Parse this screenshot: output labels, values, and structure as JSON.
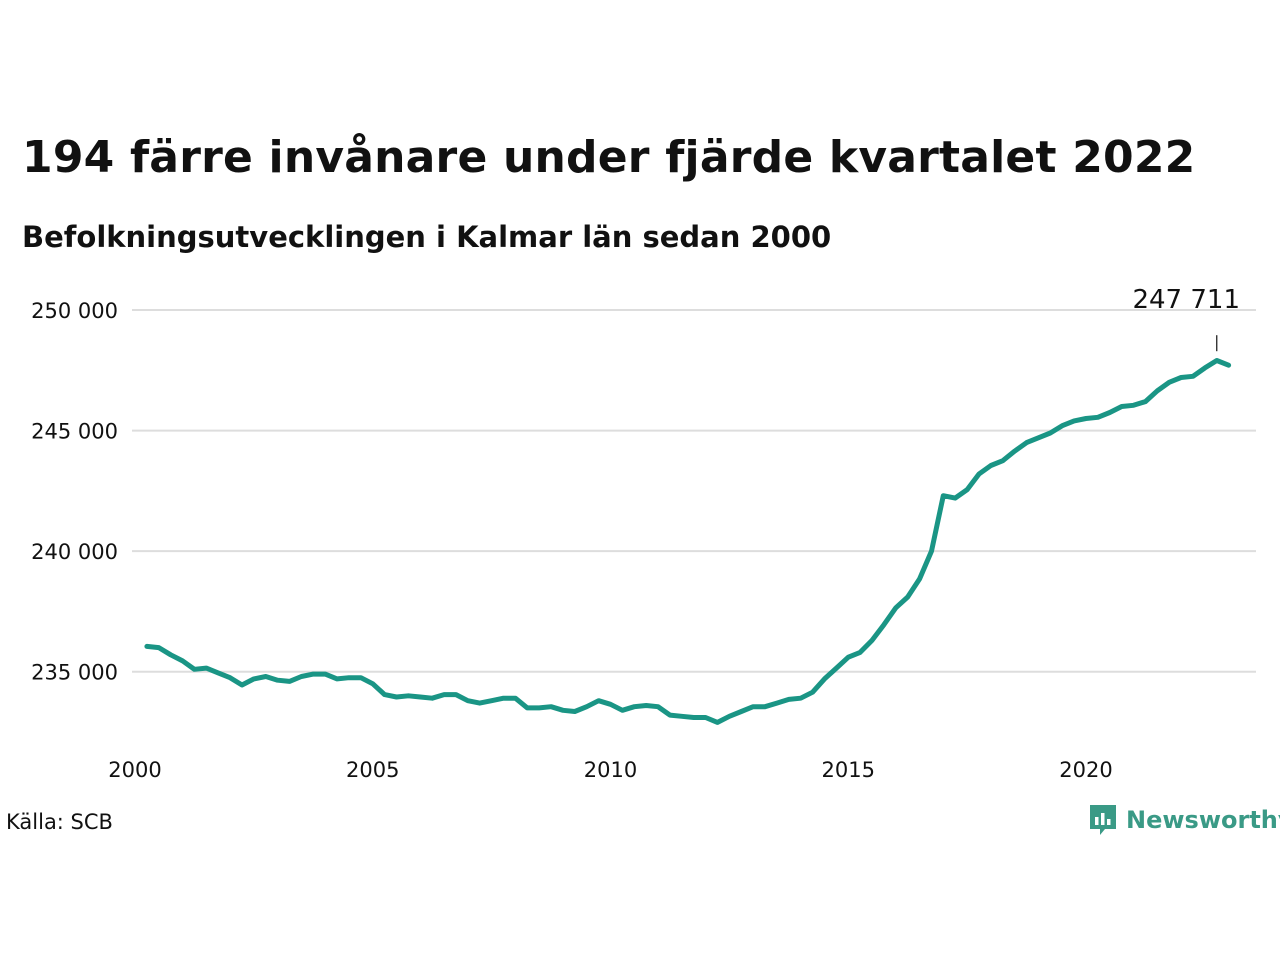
{
  "title": "194 färre invånare under fjärde kvartalet 2022",
  "subtitle": "Befolkningsutvecklingen i Kalmar län sedan 2000",
  "source": "Källa: SCB",
  "brand": {
    "name": "Newsworthy",
    "icon": "newsworthy-logo-icon",
    "color": "#3a9a86"
  },
  "colors": {
    "line": "#1a9585",
    "grid": "#dddddd",
    "text": "#111111"
  },
  "chart_data": {
    "type": "line",
    "title": "194 färre invånare under fjärde kvartalet 2022",
    "subtitle": "Befolkningsutvecklingen i Kalmar län sedan 2000",
    "xlabel": "",
    "ylabel": "",
    "xlim": [
      2000,
      2023.25
    ],
    "ylim": [
      232500,
      250000
    ],
    "x_ticks": [
      2000,
      2005,
      2010,
      2015,
      2020
    ],
    "x_tick_labels": [
      "2000",
      "2005",
      "2010",
      "2015",
      "2020"
    ],
    "y_ticks": [
      235000,
      240000,
      245000,
      250000
    ],
    "y_tick_labels": [
      "235 000",
      "240 000",
      "245 000",
      "250 000"
    ],
    "grid": "horizontal",
    "annotation": {
      "label": "247 711",
      "x": 2022.75,
      "value": 247711
    },
    "series": [
      {
        "x_start": 2000.25,
        "x_step": 0.25,
        "values": [
          236050,
          236000,
          235700,
          235450,
          235100,
          235150,
          234950,
          234750,
          234450,
          234700,
          234800,
          234650,
          234600,
          234800,
          234900,
          234900,
          234700,
          234750,
          234750,
          234500,
          234050,
          233950,
          234000,
          233950,
          233900,
          234050,
          234050,
          233800,
          233700,
          233800,
          233900,
          233900,
          233500,
          233500,
          233550,
          233400,
          233350,
          233550,
          233800,
          233650,
          233400,
          233550,
          233600,
          233550,
          233200,
          233150,
          233100,
          233100,
          232900,
          233150,
          233350,
          233550,
          233550,
          233700,
          233850,
          233900,
          234150,
          234700,
          235150,
          235600,
          235800,
          236300,
          236950,
          237650,
          238100,
          238850,
          240000,
          242300,
          242200,
          242550,
          243200,
          243550,
          243750,
          244150,
          244500,
          244700,
          244900,
          245200,
          245400,
          245500,
          245550,
          245750,
          246000,
          246050,
          246200,
          246650,
          247000,
          247200,
          247250,
          247600,
          247905,
          247711
        ]
      }
    ]
  }
}
